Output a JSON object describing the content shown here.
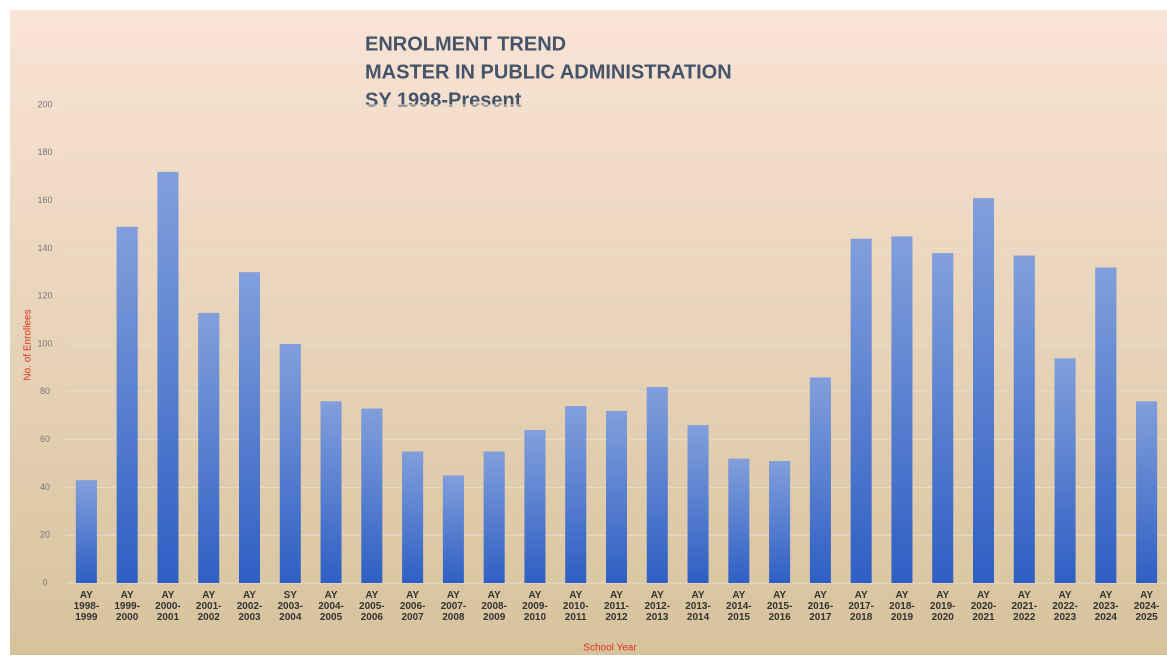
{
  "chart_data": {
    "type": "bar",
    "title": [
      "ENROLMENT TREND",
      "MASTER IN PUBLIC ADMINISTRATION",
      "SY 1998-Present"
    ],
    "x_label": "School Year",
    "y_label": "No. of Enrollees",
    "categories": [
      "AY 1998-1999",
      "AY 1999-2000",
      "AY 2000-2001",
      "AY 2001-2002",
      "AY 2002-2003",
      "SY 2003-2004",
      "AY 2004-2005",
      "AY 2005-2006",
      "AY 2006-2007",
      "AY 2007-2008",
      "AY 2008-2009",
      "AY 2009-2010",
      "AY 2010-2011",
      "AY 2011-2012",
      "AY 2012-2013",
      "AY 2013-2014",
      "AY 2014-2015",
      "AY 2015-2016",
      "AY 2016-2017",
      "AY 2017-2018",
      "AY 2018-2019",
      "AY 2019-2020",
      "AY 2020-2021",
      "AY 2021-2022",
      "AY 2022-2023",
      "AY 2023-2024",
      "AY 2024-2025"
    ],
    "values": [
      43,
      149,
      172,
      113,
      130,
      100,
      76,
      73,
      55,
      45,
      55,
      64,
      74,
      72,
      82,
      66,
      52,
      51,
      86,
      144,
      145,
      138,
      161,
      137,
      94,
      132,
      76
    ],
    "color": "#2f5fc4",
    "ylim": [
      0,
      200
    ],
    "yticks": [
      0,
      20,
      40,
      60,
      80,
      100,
      120,
      140,
      160,
      180,
      200
    ],
    "grid": true
  }
}
